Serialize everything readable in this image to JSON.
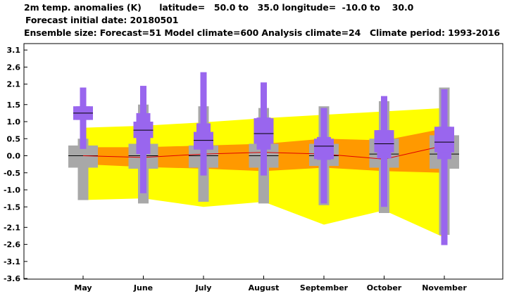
{
  "header": {
    "line1": "2m temp. anomalies (K)      latitude=   50.0 to   35.0 longitude=  -10.0 to    30.0",
    "line2": "Forecast initial date: 20180501",
    "line3": "Ensemble size: Forecast=51 Model climate=600 Analysis climate=24   Climate period: 1993-2016"
  },
  "chart_data": {
    "type": "box",
    "title": "2m temp. anomalies (K)",
    "categories": [
      "May",
      "June",
      "July",
      "August",
      "September",
      "October",
      "November"
    ],
    "y_ticks": [
      3.1,
      2.6,
      2.1,
      1.5,
      1.0,
      0.5,
      0.0,
      -0.5,
      -1.0,
      -1.5,
      -2.1,
      -2.6,
      -3.1,
      -3.6
    ],
    "y_tick_labels": [
      "3.1",
      "2.6",
      "2.1",
      "1.5",
      "1.0",
      "0.5",
      "0.0",
      "-0.5",
      "-1.0",
      "-1.5",
      "-2.1",
      "-2.6",
      "-3.1",
      "-3.6"
    ],
    "ylim": [
      -3.6,
      3.1
    ],
    "climate_band_outer": {
      "color": "#ffff00",
      "upper": [
        0.82,
        0.88,
        0.98,
        1.1,
        1.2,
        1.3,
        1.4
      ],
      "lower": [
        -1.3,
        -1.25,
        -1.5,
        -1.35,
        -2.02,
        -1.6,
        -2.4
      ]
    },
    "climate_band_inner": {
      "color": "#ff9900",
      "upper": [
        0.25,
        0.25,
        0.3,
        0.35,
        0.5,
        0.45,
        0.8
      ],
      "lower": [
        -0.25,
        -0.33,
        -0.38,
        -0.45,
        -0.35,
        -0.45,
        -0.5
      ]
    },
    "climate_median_line": {
      "color": "#e00000",
      "values": [
        0.0,
        -0.05,
        0.05,
        0.1,
        0.05,
        -0.1,
        0.3
      ]
    },
    "analysis_climate": {
      "color": "#a8a8a8",
      "box_low": [
        -0.35,
        -0.38,
        -0.35,
        -0.35,
        -0.3,
        -0.35,
        -0.38
      ],
      "box_high": [
        0.3,
        0.35,
        0.3,
        0.35,
        0.35,
        0.5,
        0.6
      ],
      "whisker_low": [
        -1.3,
        -1.4,
        -1.35,
        -1.4,
        -1.45,
        -1.68,
        -2.32
      ],
      "whisker_high": [
        0.5,
        1.5,
        1.45,
        1.4,
        1.45,
        1.6,
        2.0
      ],
      "median": [
        0.0,
        0.0,
        0.0,
        0.0,
        0.0,
        0.05,
        0.05
      ]
    },
    "forecast": {
      "color": "#9966ee",
      "box_inner_low": [
        1.05,
        0.52,
        0.18,
        0.35,
        -0.1,
        0.1,
        0.1
      ],
      "box_inner_high": [
        1.45,
        1.0,
        0.7,
        1.1,
        0.5,
        0.75,
        0.85
      ],
      "box_outer_low": [
        1.05,
        0.05,
        0.2,
        0.18,
        -0.12,
        -0.08,
        -0.1
      ],
      "box_outer_high": [
        1.45,
        1.25,
        0.95,
        1.12,
        0.55,
        0.75,
        0.85
      ],
      "whisker_low": [
        0.2,
        -1.1,
        -0.58,
        -0.58,
        -1.4,
        -1.5,
        -2.62
      ],
      "whisker_high": [
        2.0,
        2.05,
        2.45,
        2.15,
        1.4,
        1.75,
        1.95
      ],
      "median": [
        1.25,
        0.75,
        0.45,
        0.65,
        0.28,
        0.35,
        0.4
      ]
    }
  }
}
